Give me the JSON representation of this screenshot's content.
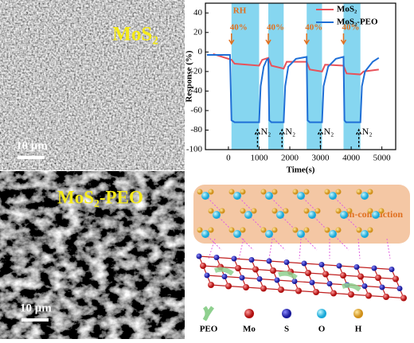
{
  "panels": {
    "sem_top": {
      "label": "MoS₂",
      "scale_bar": "10 μm"
    },
    "sem_bottom": {
      "label": "MoS₂-PEO",
      "scale_bar": "10 μm"
    }
  },
  "chart_data": {
    "type": "line",
    "x_label": "Time(s)",
    "y_label": "Response (%)",
    "xlim": [
      -750,
      5450
    ],
    "ylim": [
      -100,
      50
    ],
    "xticks": [
      0,
      1000,
      2000,
      3000,
      4000,
      5000
    ],
    "yticks": [
      -100,
      -80,
      -60,
      -40,
      -20,
      0,
      20,
      40
    ],
    "legend_position": "upper right",
    "shaded_ranges": [
      [
        100,
        1000
      ],
      [
        1300,
        1800
      ],
      [
        2550,
        3050
      ],
      [
        3750,
        4300
      ]
    ],
    "shade_color": "#86d6f0",
    "rh_label": "RH",
    "band_labels": [
      "40%",
      "40%",
      "40%",
      "40%"
    ],
    "gas_labels": [
      "N₂",
      "N₂",
      "N₂",
      "N₂"
    ],
    "series": [
      {
        "name": "MoS₂",
        "color": "#e8525a",
        "x": [
          -500,
          100,
          200,
          1000,
          1100,
          1300,
          1400,
          1800,
          1900,
          2550,
          2650,
          3050,
          3150,
          3750,
          3850,
          4300,
          4400,
          4900
        ],
        "values": [
          -2,
          -8,
          -12,
          -14,
          -8,
          -6,
          -14,
          -17,
          -10,
          -10,
          -18,
          -20,
          -13,
          -14,
          -22,
          -23,
          -20,
          -18
        ]
      },
      {
        "name": "MoS₂-PEO",
        "color": "#1f6fd6",
        "x": [
          -700,
          50,
          100,
          200,
          1000,
          1050,
          1150,
          1250,
          1300,
          1330,
          1400,
          1800,
          1850,
          1950,
          2200,
          2550,
          2580,
          2650,
          3050,
          3100,
          3250,
          3500,
          3750,
          3780,
          3830,
          4300,
          4350,
          4450,
          4700,
          4900
        ],
        "values": [
          -3,
          -3,
          -70,
          -72,
          -72,
          -35,
          -15,
          -8,
          -7,
          -70,
          -72,
          -72,
          -35,
          -15,
          -7,
          -5,
          -70,
          -72,
          -72,
          -35,
          -15,
          -7,
          -5,
          -70,
          -72,
          -72,
          -35,
          -20,
          -10,
          -6
        ]
      }
    ]
  },
  "schematic": {
    "region_label": "Ion-conduction",
    "legend": [
      "PEO",
      "Mo",
      "S",
      "O",
      "H"
    ]
  }
}
